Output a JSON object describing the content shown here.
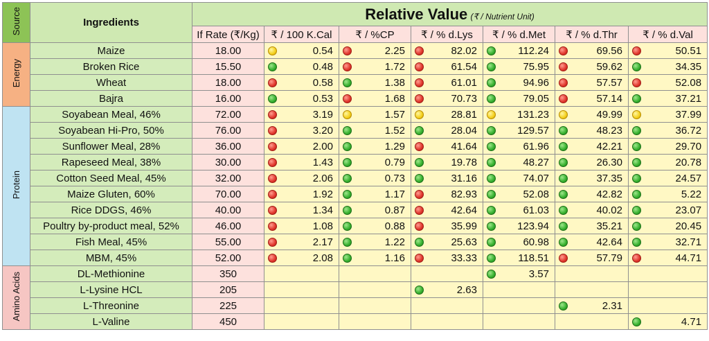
{
  "source_header": "Source",
  "ingredients_header": "Ingredients",
  "title_main": "Relative Value",
  "title_sub": "(₹ / Nutrient Unit)",
  "columns": [
    "If Rate (₹/Kg)",
    "₹ / 100 K.Cal",
    "₹ / %CP",
    "₹ / % d.Lys",
    "₹ / % d.Met",
    "₹ / % d.Thr",
    "₹ / % d.Val"
  ],
  "groups": [
    {
      "name": "Energy",
      "color": "#f6b183",
      "rows": [
        {
          "name": "Maize",
          "rate": "18.00",
          "cells": [
            {
              "v": "0.54",
              "c": "yellow"
            },
            {
              "v": "2.25",
              "c": "red"
            },
            {
              "v": "82.02",
              "c": "red"
            },
            {
              "v": "112.24",
              "c": "green"
            },
            {
              "v": "69.56",
              "c": "red"
            },
            {
              "v": "50.51",
              "c": "red"
            }
          ]
        },
        {
          "name": "Broken Rice",
          "rate": "15.50",
          "cells": [
            {
              "v": "0.48",
              "c": "green"
            },
            {
              "v": "1.72",
              "c": "red"
            },
            {
              "v": "61.54",
              "c": "red"
            },
            {
              "v": "75.95",
              "c": "green"
            },
            {
              "v": "59.62",
              "c": "red"
            },
            {
              "v": "34.35",
              "c": "green"
            }
          ]
        },
        {
          "name": "Wheat",
          "rate": "18.00",
          "cells": [
            {
              "v": "0.58",
              "c": "red"
            },
            {
              "v": "1.38",
              "c": "green"
            },
            {
              "v": "61.01",
              "c": "red"
            },
            {
              "v": "94.96",
              "c": "green"
            },
            {
              "v": "57.57",
              "c": "red"
            },
            {
              "v": "52.08",
              "c": "red"
            }
          ]
        },
        {
          "name": "Bajra",
          "rate": "16.00",
          "cells": [
            {
              "v": "0.53",
              "c": "green"
            },
            {
              "v": "1.68",
              "c": "red"
            },
            {
              "v": "70.73",
              "c": "red"
            },
            {
              "v": "79.05",
              "c": "green"
            },
            {
              "v": "57.14",
              "c": "red"
            },
            {
              "v": "37.21",
              "c": "green"
            }
          ]
        }
      ]
    },
    {
      "name": "Protein",
      "color": "#bfe3f2",
      "rows": [
        {
          "name": "Soyabean Meal, 46%",
          "rate": "72.00",
          "cells": [
            {
              "v": "3.19",
              "c": "red"
            },
            {
              "v": "1.57",
              "c": "yellow"
            },
            {
              "v": "28.81",
              "c": "yellow"
            },
            {
              "v": "131.23",
              "c": "yellow"
            },
            {
              "v": "49.99",
              "c": "yellow"
            },
            {
              "v": "37.99",
              "c": "yellow"
            }
          ]
        },
        {
          "name": "Soyabean Hi-Pro, 50%",
          "rate": "76.00",
          "cells": [
            {
              "v": "3.20",
              "c": "red"
            },
            {
              "v": "1.52",
              "c": "green"
            },
            {
              "v": "28.04",
              "c": "green"
            },
            {
              "v": "129.57",
              "c": "green"
            },
            {
              "v": "48.23",
              "c": "green"
            },
            {
              "v": "36.72",
              "c": "green"
            }
          ]
        },
        {
          "name": "Sunflower Meal, 28%",
          "rate": "36.00",
          "cells": [
            {
              "v": "2.00",
              "c": "red"
            },
            {
              "v": "1.29",
              "c": "green"
            },
            {
              "v": "41.64",
              "c": "red"
            },
            {
              "v": "61.96",
              "c": "green"
            },
            {
              "v": "42.21",
              "c": "green"
            },
            {
              "v": "29.70",
              "c": "green"
            }
          ]
        },
        {
          "name": "Rapeseed Meal, 38%",
          "rate": "30.00",
          "cells": [
            {
              "v": "1.43",
              "c": "red"
            },
            {
              "v": "0.79",
              "c": "green"
            },
            {
              "v": "19.78",
              "c": "green"
            },
            {
              "v": "48.27",
              "c": "green"
            },
            {
              "v": "26.30",
              "c": "green"
            },
            {
              "v": "20.78",
              "c": "green"
            }
          ]
        },
        {
          "name": "Cotton Seed Meal, 45%",
          "rate": "32.00",
          "cells": [
            {
              "v": "2.06",
              "c": "red"
            },
            {
              "v": "0.73",
              "c": "green"
            },
            {
              "v": "31.16",
              "c": "green"
            },
            {
              "v": "74.07",
              "c": "green"
            },
            {
              "v": "37.35",
              "c": "green"
            },
            {
              "v": "24.57",
              "c": "green"
            }
          ]
        },
        {
          "name": "Maize Gluten, 60%",
          "rate": "70.00",
          "cells": [
            {
              "v": "1.92",
              "c": "red"
            },
            {
              "v": "1.17",
              "c": "green"
            },
            {
              "v": "82.93",
              "c": "red"
            },
            {
              "v": "52.08",
              "c": "green"
            },
            {
              "v": "42.82",
              "c": "green"
            },
            {
              "v": "5.22",
              "c": "green"
            }
          ]
        },
        {
          "name": "Rice DDGS, 46%",
          "rate": "40.00",
          "cells": [
            {
              "v": "1.34",
              "c": "red"
            },
            {
              "v": "0.87",
              "c": "green"
            },
            {
              "v": "42.64",
              "c": "red"
            },
            {
              "v": "61.03",
              "c": "green"
            },
            {
              "v": "40.02",
              "c": "green"
            },
            {
              "v": "23.07",
              "c": "green"
            }
          ]
        },
        {
          "name": "Poultry by-product meal, 52%",
          "rate": "46.00",
          "cells": [
            {
              "v": "1.08",
              "c": "red"
            },
            {
              "v": "0.88",
              "c": "green"
            },
            {
              "v": "35.99",
              "c": "red"
            },
            {
              "v": "123.94",
              "c": "green"
            },
            {
              "v": "35.21",
              "c": "green"
            },
            {
              "v": "20.45",
              "c": "green"
            }
          ]
        },
        {
          "name": "Fish Meal, 45%",
          "rate": "55.00",
          "cells": [
            {
              "v": "2.17",
              "c": "red"
            },
            {
              "v": "1.22",
              "c": "green"
            },
            {
              "v": "25.63",
              "c": "green"
            },
            {
              "v": "60.98",
              "c": "green"
            },
            {
              "v": "42.64",
              "c": "green"
            },
            {
              "v": "32.71",
              "c": "green"
            }
          ]
        },
        {
          "name": "MBM, 45%",
          "rate": "52.00",
          "cells": [
            {
              "v": "2.08",
              "c": "red"
            },
            {
              "v": "1.16",
              "c": "green"
            },
            {
              "v": "33.33",
              "c": "red"
            },
            {
              "v": "118.51",
              "c": "green"
            },
            {
              "v": "57.79",
              "c": "red"
            },
            {
              "v": "44.71",
              "c": "red"
            }
          ]
        }
      ]
    },
    {
      "name": "Amino Acids",
      "color": "#f6c6c3",
      "rows": [
        {
          "name": "DL-Methionine",
          "rate": "350",
          "cells": [
            null,
            null,
            null,
            {
              "v": "3.57",
              "c": "green"
            },
            null,
            null
          ]
        },
        {
          "name": "L-Lysine HCL",
          "rate": "205",
          "cells": [
            null,
            null,
            {
              "v": "2.63",
              "c": "green"
            },
            null,
            null,
            null
          ]
        },
        {
          "name": "L-Threonine",
          "rate": "225",
          "cells": [
            null,
            null,
            null,
            null,
            {
              "v": "2.31",
              "c": "green"
            },
            null
          ]
        },
        {
          "name": "L-Valine",
          "rate": "450",
          "cells": [
            null,
            null,
            null,
            null,
            null,
            {
              "v": "4.71",
              "c": "green"
            }
          ]
        }
      ]
    }
  ]
}
